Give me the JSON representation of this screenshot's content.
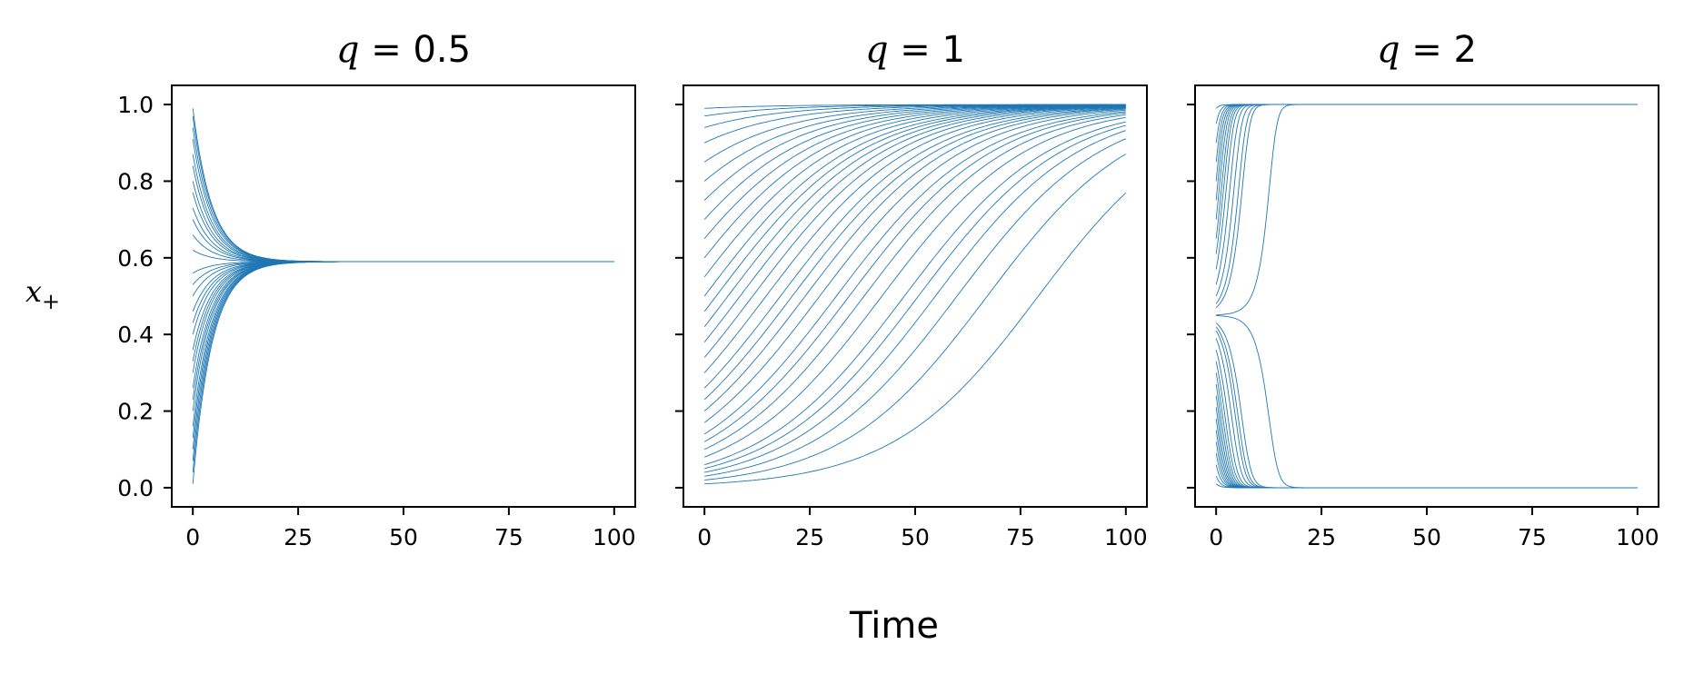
{
  "figure": {
    "xlabel": "Time",
    "ylabel": "x",
    "ylabel_subscript": "+",
    "line_color": "#1f77b4"
  },
  "chart_data": [
    {
      "type": "line",
      "title": "q = 0.5",
      "title_var": "q",
      "title_value": "0.5",
      "xlim": [
        -5,
        105
      ],
      "ylim": [
        -0.05,
        1.05
      ],
      "xticks": [
        0,
        25,
        50,
        75,
        100
      ],
      "yticks": [
        0.0,
        0.2,
        0.4,
        0.6,
        0.8,
        1.0
      ],
      "ytick_labels": [
        "0.0",
        "0.2",
        "0.4",
        "0.6",
        "0.8",
        "1.0"
      ],
      "show_yticklabels": true,
      "behavior": "all trajectories converge to a stable fixed point",
      "fixed_point": 0.59,
      "initial_conditions": [
        0.01,
        0.04,
        0.07,
        0.1,
        0.13,
        0.16,
        0.2,
        0.23,
        0.26,
        0.3,
        0.33,
        0.36,
        0.4,
        0.43,
        0.46,
        0.5,
        0.53,
        0.56,
        0.62,
        0.66,
        0.7,
        0.73,
        0.77,
        0.8,
        0.84,
        0.87,
        0.91,
        0.94,
        0.97,
        0.99
      ],
      "x_range": [
        0,
        100
      ]
    },
    {
      "type": "line",
      "title": "q = 1",
      "title_var": "q",
      "title_value": "1",
      "xlim": [
        -5,
        105
      ],
      "ylim": [
        -0.05,
        1.05
      ],
      "xticks": [
        0,
        25,
        50,
        75,
        100
      ],
      "yticks": [
        0.0,
        0.2,
        0.4,
        0.6,
        0.8,
        1.0
      ],
      "show_yticklabels": false,
      "behavior": "slow logistic growth of all trajectories toward 1",
      "fixed_point": 1.0,
      "initial_conditions": [
        0.01,
        0.02,
        0.03,
        0.04,
        0.05,
        0.06,
        0.08,
        0.1,
        0.12,
        0.14,
        0.17,
        0.2,
        0.23,
        0.26,
        0.3,
        0.34,
        0.38,
        0.42,
        0.46,
        0.5,
        0.55,
        0.6,
        0.65,
        0.7,
        0.75,
        0.8,
        0.85,
        0.9,
        0.94,
        0.97,
        0.99
      ],
      "x_range": [
        0,
        100
      ]
    },
    {
      "type": "line",
      "title": "q = 2",
      "title_var": "q",
      "title_value": "2",
      "xlim": [
        -5,
        105
      ],
      "ylim": [
        -0.05,
        1.05
      ],
      "xticks": [
        0,
        25,
        50,
        75,
        100
      ],
      "yticks": [
        0.0,
        0.2,
        0.4,
        0.6,
        0.8,
        1.0
      ],
      "show_yticklabels": false,
      "behavior": "bistable: trajectories split to 1 or 0 around an unstable point",
      "unstable_point": 0.45,
      "initial_conditions": [
        0.01,
        0.03,
        0.06,
        0.09,
        0.12,
        0.15,
        0.18,
        0.21,
        0.24,
        0.27,
        0.3,
        0.33,
        0.36,
        0.39,
        0.41,
        0.42,
        0.43,
        0.449,
        0.451,
        0.47,
        0.48,
        0.5,
        0.53,
        0.57,
        0.61,
        0.65,
        0.7,
        0.75,
        0.8,
        0.85,
        0.9,
        0.95,
        0.99
      ],
      "x_range": [
        0,
        100
      ]
    }
  ]
}
